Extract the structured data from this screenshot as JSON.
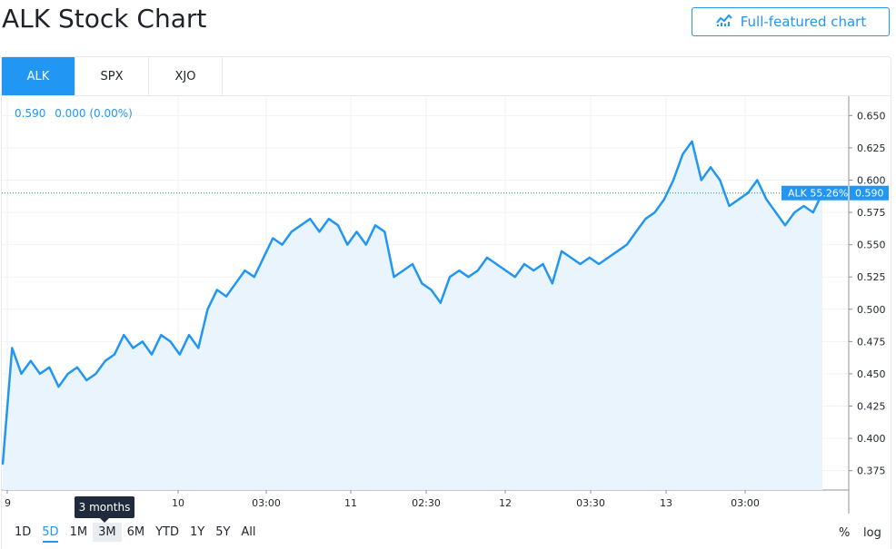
{
  "header": {
    "title": "ALK Stock Chart",
    "full_featured_label": "Full-featured chart"
  },
  "tabs": [
    {
      "label": "ALK",
      "active": true
    },
    {
      "label": "SPX",
      "active": false
    },
    {
      "label": "XJO",
      "active": false
    }
  ],
  "legend": {
    "price": "0.590",
    "change": "0.000 (0.00%)"
  },
  "price_tag": {
    "label": "ALK 55.26%",
    "value": "0.590"
  },
  "tooltip": "3 months",
  "ranges": [
    "1D",
    "5D",
    "1M",
    "3M",
    "6M",
    "YTD",
    "1Y",
    "5Y",
    "All"
  ],
  "active_range": "5D",
  "scale_buttons": {
    "percent": "%",
    "log": "log"
  },
  "colors": {
    "line": "#2196f3",
    "area": "#eaf4fd",
    "accent": "#2196f3"
  },
  "chart_data": {
    "type": "area",
    "series": [
      {
        "name": "ALK",
        "values": [
          0.38,
          0.47,
          0.45,
          0.46,
          0.45,
          0.455,
          0.44,
          0.45,
          0.455,
          0.445,
          0.45,
          0.46,
          0.465,
          0.48,
          0.47,
          0.475,
          0.465,
          0.48,
          0.475,
          0.465,
          0.48,
          0.47,
          0.5,
          0.515,
          0.51,
          0.52,
          0.53,
          0.525,
          0.54,
          0.555,
          0.55,
          0.56,
          0.565,
          0.57,
          0.56,
          0.57,
          0.565,
          0.55,
          0.56,
          0.55,
          0.565,
          0.56,
          0.525,
          0.53,
          0.535,
          0.52,
          0.515,
          0.505,
          0.525,
          0.53,
          0.525,
          0.53,
          0.54,
          0.535,
          0.53,
          0.525,
          0.535,
          0.53,
          0.535,
          0.52,
          0.545,
          0.54,
          0.535,
          0.54,
          0.535,
          0.54,
          0.545,
          0.55,
          0.56,
          0.57,
          0.575,
          0.585,
          0.6,
          0.62,
          0.63,
          0.6,
          0.61,
          0.6,
          0.58,
          0.585,
          0.59,
          0.6,
          0.585,
          0.575,
          0.565,
          0.575,
          0.58,
          0.575,
          0.59
        ]
      }
    ],
    "y_ticks": [
      "0.650",
      "0.625",
      "0.600",
      "0.575",
      "0.550",
      "0.525",
      "0.500",
      "0.475",
      "0.450",
      "0.425",
      "0.400",
      "0.375"
    ],
    "x_ticks": [
      "9",
      "10",
      "03:00",
      "11",
      "02:30",
      "12",
      "03:30",
      "13",
      "03:00"
    ],
    "ylim": [
      0.36,
      0.665
    ],
    "current_value": 0.59,
    "grid": true
  }
}
